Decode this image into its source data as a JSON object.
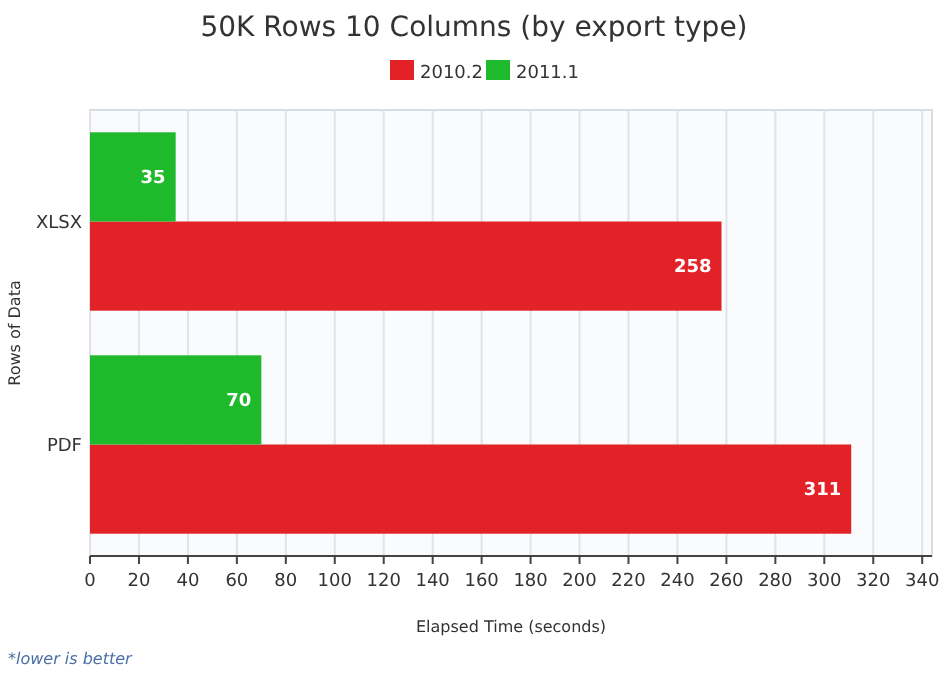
{
  "chart_data": {
    "type": "bar",
    "orientation": "horizontal",
    "title": "50K Rows 10 Columns (by export type)",
    "xlabel": "Elapsed Time (seconds)",
    "ylabel": "Rows of Data",
    "categories": [
      "XLSX",
      "PDF"
    ],
    "series": [
      {
        "name": "2010.2",
        "color": "#e32227",
        "values": [
          258,
          311
        ]
      },
      {
        "name": "2011.1",
        "color": "#1fba2c",
        "values": [
          35,
          70
        ]
      }
    ],
    "xlim": [
      0,
      344
    ],
    "xticks": [
      0,
      20,
      40,
      60,
      80,
      100,
      120,
      140,
      160,
      180,
      200,
      220,
      240,
      260,
      280,
      300,
      320,
      340
    ],
    "grid": "x",
    "legend": "top",
    "data_labels": true,
    "annotations": [
      "*lower is better"
    ]
  }
}
